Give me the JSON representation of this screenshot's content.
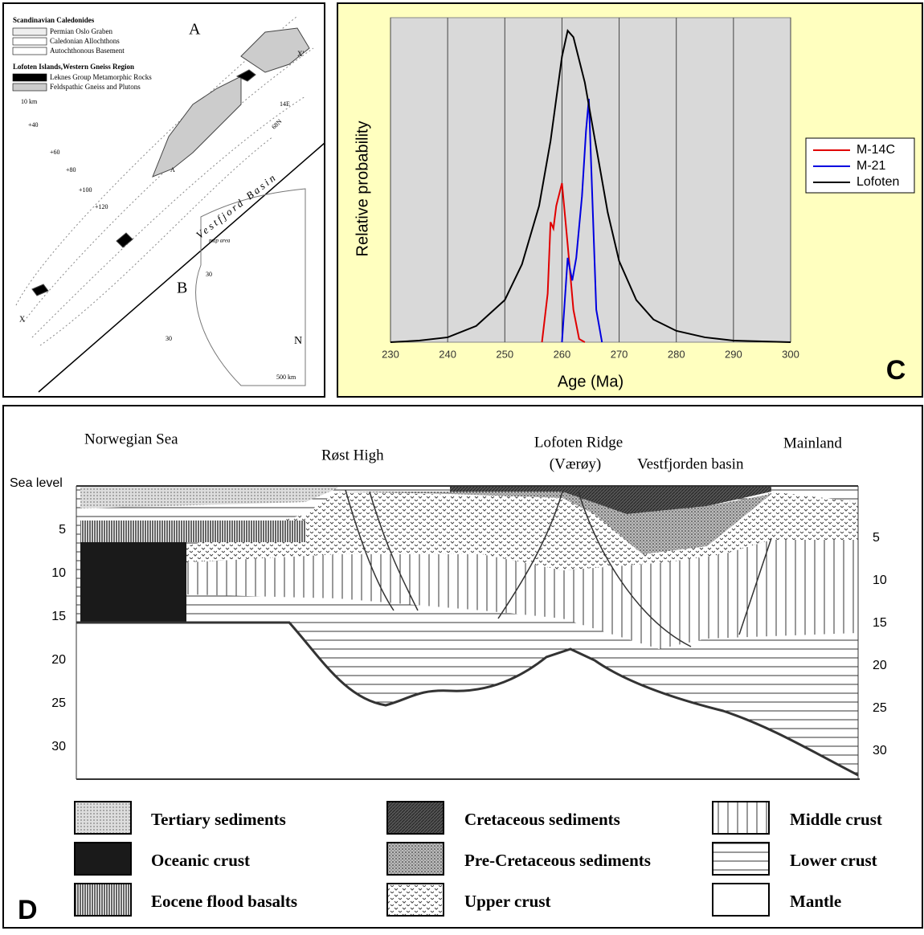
{
  "chart_data": {
    "type": "line",
    "ylabel": "Relative probability",
    "xlabel": "Age (Ma)",
    "panel_label": "C",
    "xlim": [
      230,
      300
    ],
    "xticks": [
      230,
      240,
      250,
      260,
      270,
      280,
      290,
      300
    ],
    "ylim": [
      0,
      1
    ],
    "grid": true,
    "legend": "right",
    "series": [
      {
        "name": "M-14C",
        "color": "#e00000",
        "x": [
          256.5,
          257.5,
          258,
          258.5,
          259,
          260,
          261,
          262,
          263,
          264
        ],
        "values": [
          0,
          0.15,
          0.37,
          0.35,
          0.42,
          0.49,
          0.3,
          0.1,
          0.01,
          0
        ]
      },
      {
        "name": "M-21",
        "color": "#0000e0",
        "x": [
          260,
          261,
          261.8,
          262.5,
          263.5,
          264.2,
          264.7,
          265.3,
          266,
          267
        ],
        "values": [
          0,
          0.26,
          0.19,
          0.26,
          0.45,
          0.65,
          0.75,
          0.45,
          0.1,
          0
        ]
      },
      {
        "name": "Lofoten",
        "color": "#000000",
        "x": [
          230,
          235,
          240,
          245,
          250,
          253,
          256,
          258,
          260,
          261,
          262,
          264,
          266,
          268,
          270,
          273,
          276,
          280,
          285,
          290,
          300
        ],
        "values": [
          0,
          0.005,
          0.015,
          0.05,
          0.13,
          0.24,
          0.42,
          0.62,
          0.88,
          0.96,
          0.94,
          0.8,
          0.6,
          0.4,
          0.25,
          0.13,
          0.07,
          0.035,
          0.015,
          0.005,
          0
        ]
      }
    ]
  },
  "map": {
    "legend_title": "Scandinavian Caledonides",
    "legend_items": [
      "Permian Oslo Graben",
      "Caledonian Allochthons",
      "Autochthonous Basement"
    ],
    "legend_title2": "Lofoten Islands,Western Gneiss Region",
    "legend_items2": [
      "Leknes Group Metamorphic Rocks",
      "Feldspathic Gneiss and Plutons"
    ],
    "scale_small": "10 km",
    "label_a": "A",
    "label_x2": "X'",
    "contours": [
      "+40",
      "+60",
      "+80",
      "+100",
      "+120"
    ],
    "basin": "Vestfjord Basin",
    "lat": "68N",
    "lon": "14E",
    "label_b": "B",
    "map_area": "map area",
    "depth30": [
      "30",
      "30"
    ],
    "scale_large": "500 km",
    "north": "N",
    "label_x": "X",
    "label_a2": "A"
  },
  "cross_section": {
    "places": [
      "Norwegian Sea",
      "Røst High",
      "Lofoten Ridge",
      "(Værøy)",
      "Vestfjorden basin",
      "Mainland"
    ],
    "sea_level": "Sea level",
    "left_depths": [
      5,
      10,
      15,
      20,
      25,
      30
    ],
    "right_depths": [
      5,
      10,
      15,
      20,
      25,
      30
    ],
    "panel_label": "D",
    "legend": [
      "Tertiary sediments",
      "Oceanic crust",
      "Eocene flood basalts",
      "Cretaceous sediments",
      "Pre-Cretaceous sediments",
      "Upper crust",
      "Middle crust",
      "Lower crust",
      "Mantle"
    ]
  }
}
